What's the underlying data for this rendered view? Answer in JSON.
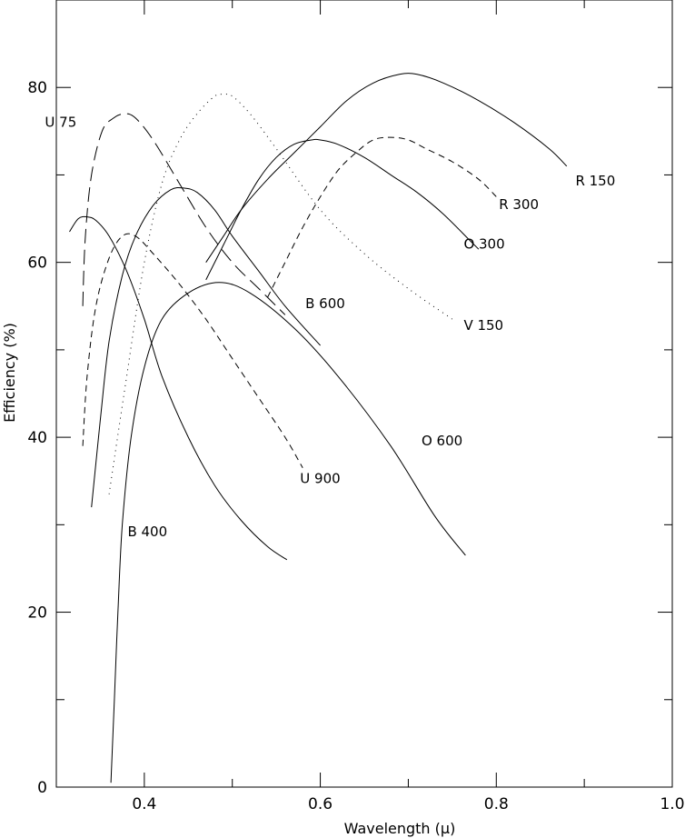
{
  "chart_data": {
    "type": "line",
    "title": "",
    "xlabel": "Wavelength  (μ)",
    "ylabel": "Efficiency  (%)",
    "xlim": [
      0.3,
      1.0
    ],
    "ylim": [
      0,
      90
    ],
    "grid": false,
    "legend": "none",
    "x_ticks": [
      0.4,
      0.6,
      0.8,
      1.0
    ],
    "x_tick_labels": [
      "0.4",
      "0.6",
      "0.8",
      "1.0"
    ],
    "x_minor_ticks": [
      0.3,
      0.5,
      0.7,
      0.9
    ],
    "y_ticks": [
      0,
      20,
      40,
      60,
      80
    ],
    "y_tick_labels": [
      "0",
      "20",
      "40",
      "60",
      "80"
    ],
    "y_minor_ticks": [
      10,
      30,
      50,
      70
    ],
    "series": [
      {
        "name": "U 75",
        "style": "longdash",
        "x": [
          0.33,
          0.333,
          0.34,
          0.352,
          0.365,
          0.378,
          0.39,
          0.41,
          0.44,
          0.47,
          0.5,
          0.53,
          0.56
        ],
        "y": [
          55,
          63,
          70,
          75,
          76.5,
          77,
          76.5,
          74,
          69,
          64,
          60,
          57,
          54
        ]
      },
      {
        "name": "V 150",
        "style": "dotted",
        "x": [
          0.36,
          0.38,
          0.4,
          0.42,
          0.44,
          0.46,
          0.48,
          0.49,
          0.5,
          0.52,
          0.55,
          0.6,
          0.65,
          0.7,
          0.75
        ],
        "y": [
          33.5,
          47,
          60,
          69,
          74,
          77,
          79,
          79.2,
          79,
          77,
          73,
          66,
          61,
          57,
          53.5
        ]
      },
      {
        "name": "R 150",
        "style": "solid",
        "x": [
          0.47,
          0.49,
          0.51,
          0.54,
          0.57,
          0.6,
          0.63,
          0.66,
          0.69,
          0.71,
          0.74,
          0.78,
          0.82,
          0.86,
          0.88
        ],
        "y": [
          60,
          63,
          66,
          69.5,
          72.5,
          75.5,
          78.5,
          80.5,
          81.5,
          81.5,
          80.5,
          78.5,
          76,
          73,
          71
        ]
      },
      {
        "name": "R 300",
        "style": "dashed",
        "x": [
          0.54,
          0.56,
          0.58,
          0.6,
          0.62,
          0.64,
          0.66,
          0.68,
          0.7,
          0.72,
          0.75,
          0.78,
          0.8
        ],
        "y": [
          56,
          60,
          64,
          67.5,
          70.5,
          72.5,
          74,
          74.3,
          74,
          73,
          71.5,
          69.5,
          67.5
        ]
      },
      {
        "name": "O 300",
        "style": "solid",
        "x": [
          0.47,
          0.49,
          0.51,
          0.53,
          0.55,
          0.57,
          0.59,
          0.6,
          0.62,
          0.65,
          0.68,
          0.71,
          0.74,
          0.77,
          0.78
        ],
        "y": [
          58,
          62,
          66,
          69.5,
          72,
          73.5,
          74,
          74,
          73.5,
          72,
          70,
          68,
          65.5,
          62.5,
          61.5
        ]
      },
      {
        "name": "B 600",
        "style": "solid",
        "x": [
          0.34,
          0.35,
          0.36,
          0.375,
          0.39,
          0.41,
          0.43,
          0.445,
          0.46,
          0.48,
          0.5,
          0.53,
          0.56,
          0.6
        ],
        "y": [
          32,
          42,
          51,
          58.5,
          63,
          66.5,
          68.3,
          68.5,
          68,
          66,
          63,
          59,
          55,
          50.5
        ]
      },
      {
        "name": "U 900",
        "style": "dashed",
        "x": [
          0.33,
          0.335,
          0.345,
          0.36,
          0.375,
          0.39,
          0.41,
          0.44,
          0.47,
          0.5,
          0.53,
          0.56,
          0.58
        ],
        "y": [
          39,
          47,
          55,
          60.5,
          63,
          63,
          61,
          57.5,
          53.5,
          49,
          44.5,
          40,
          36.5
        ]
      },
      {
        "name": "B 400",
        "style": "solid",
        "x": [
          0.315,
          0.325,
          0.335,
          0.345,
          0.36,
          0.38,
          0.4,
          0.42,
          0.45,
          0.48,
          0.51,
          0.54,
          0.562
        ],
        "y": [
          63.5,
          65,
          65.2,
          64.8,
          63,
          59,
          53.5,
          47,
          40,
          34.5,
          30.5,
          27.5,
          26
        ]
      },
      {
        "name": "O 600",
        "style": "solid",
        "x": [
          0.362,
          0.366,
          0.37,
          0.375,
          0.385,
          0.4,
          0.42,
          0.45,
          0.485,
          0.52,
          0.57,
          0.62,
          0.68,
          0.73,
          0.765
        ],
        "y": [
          0.5,
          10,
          20,
          30,
          40,
          48,
          53.5,
          56.5,
          57.7,
          56.5,
          52.5,
          47,
          39,
          31,
          26.5
        ]
      }
    ],
    "annotations": [
      {
        "text": "U 75",
        "x": 0.323,
        "y": 76.0,
        "anchor": "end"
      },
      {
        "text": "V 150",
        "x": 0.763,
        "y": 52.8,
        "anchor": "start"
      },
      {
        "text": "R 150",
        "x": 0.89,
        "y": 69.3,
        "anchor": "start"
      },
      {
        "text": "R 300",
        "x": 0.803,
        "y": 66.6,
        "anchor": "start"
      },
      {
        "text": "O 300",
        "x": 0.763,
        "y": 62.1,
        "anchor": "start"
      },
      {
        "text": "B 600",
        "x": 0.583,
        "y": 55.3,
        "anchor": "start"
      },
      {
        "text": "U 900",
        "x": 0.577,
        "y": 35.3,
        "anchor": "start"
      },
      {
        "text": "B 400",
        "x": 0.381,
        "y": 29.2,
        "anchor": "start"
      },
      {
        "text": "O 600",
        "x": 0.715,
        "y": 39.6,
        "anchor": "start"
      }
    ]
  }
}
